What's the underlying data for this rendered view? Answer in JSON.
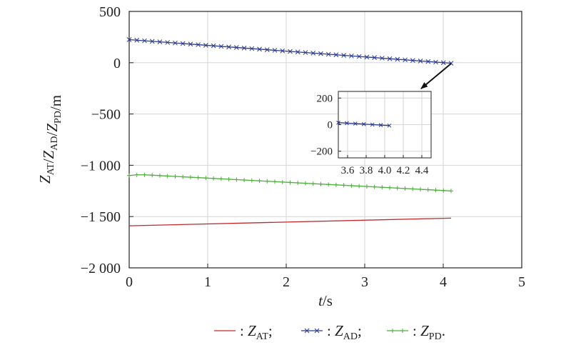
{
  "chart_data": {
    "type": "line",
    "xlabel": {
      "var": "t",
      "unit": "/s"
    },
    "ylabel": [
      {
        "base": "Z",
        "sub": "AT"
      },
      {
        "sep": "/"
      },
      {
        "base": "Z",
        "sub": "AD"
      },
      {
        "sep": "/"
      },
      {
        "base": "Z",
        "sub": "PD"
      },
      {
        "sep": "/m"
      }
    ],
    "xlim": [
      0,
      5
    ],
    "ylim": [
      -2000,
      500
    ],
    "xticks": [
      "0",
      "1",
      "2",
      "3",
      "4",
      "5"
    ],
    "yticks": [
      "500",
      "0",
      "−500",
      "−1 000",
      "−1 500",
      "−2 000"
    ],
    "ytick_values": [
      500,
      0,
      -500,
      -1000,
      -1500,
      -2000
    ],
    "grid": true,
    "series": [
      {
        "name": "Z_AT",
        "color": "#c0282d",
        "marker": "none",
        "x": [
          0,
          4.1
        ],
        "y": [
          -1590,
          -1515
        ]
      },
      {
        "name": "Z_AD",
        "color": "#2b3a8c",
        "marker": "x",
        "x": [
          0,
          4.1
        ],
        "y": [
          225,
          -5
        ]
      },
      {
        "name": "Z_PD",
        "color": "#4caf3a",
        "marker": "plus",
        "x": [
          0,
          0.1,
          0.2,
          0.3,
          4.1
        ],
        "y": [
          -1100,
          -1093,
          -1093,
          -1097,
          -1250
        ]
      }
    ],
    "inset": {
      "xlim": [
        3.5,
        4.5
      ],
      "ylim": [
        -250,
        250
      ],
      "xticks": [
        "3.6",
        "3.8",
        "4.0",
        "4.2",
        "4.4"
      ],
      "xtick_values": [
        3.6,
        3.8,
        4.0,
        4.2,
        4.4
      ],
      "yticks": [
        "200",
        "0",
        "−200"
      ],
      "ytick_values": [
        200,
        0,
        -200
      ],
      "series": [
        {
          "name": "Z_AD",
          "color": "#2b3a8c",
          "marker": "x",
          "x": [
            3.5,
            4.05
          ],
          "y": [
            15,
            -7
          ]
        }
      ]
    },
    "legend": {
      "position": "bottom",
      "entries": [
        {
          "series": "Z_AT",
          "prefix": ": ",
          "base": "Z",
          "sub": "AT",
          "suffix": ";"
        },
        {
          "series": "Z_AD",
          "prefix": ": ",
          "base": "Z",
          "sub": "AD",
          "suffix": ";"
        },
        {
          "series": "Z_PD",
          "prefix": ": ",
          "base": "Z",
          "sub": "PD",
          "suffix": "."
        }
      ]
    }
  }
}
